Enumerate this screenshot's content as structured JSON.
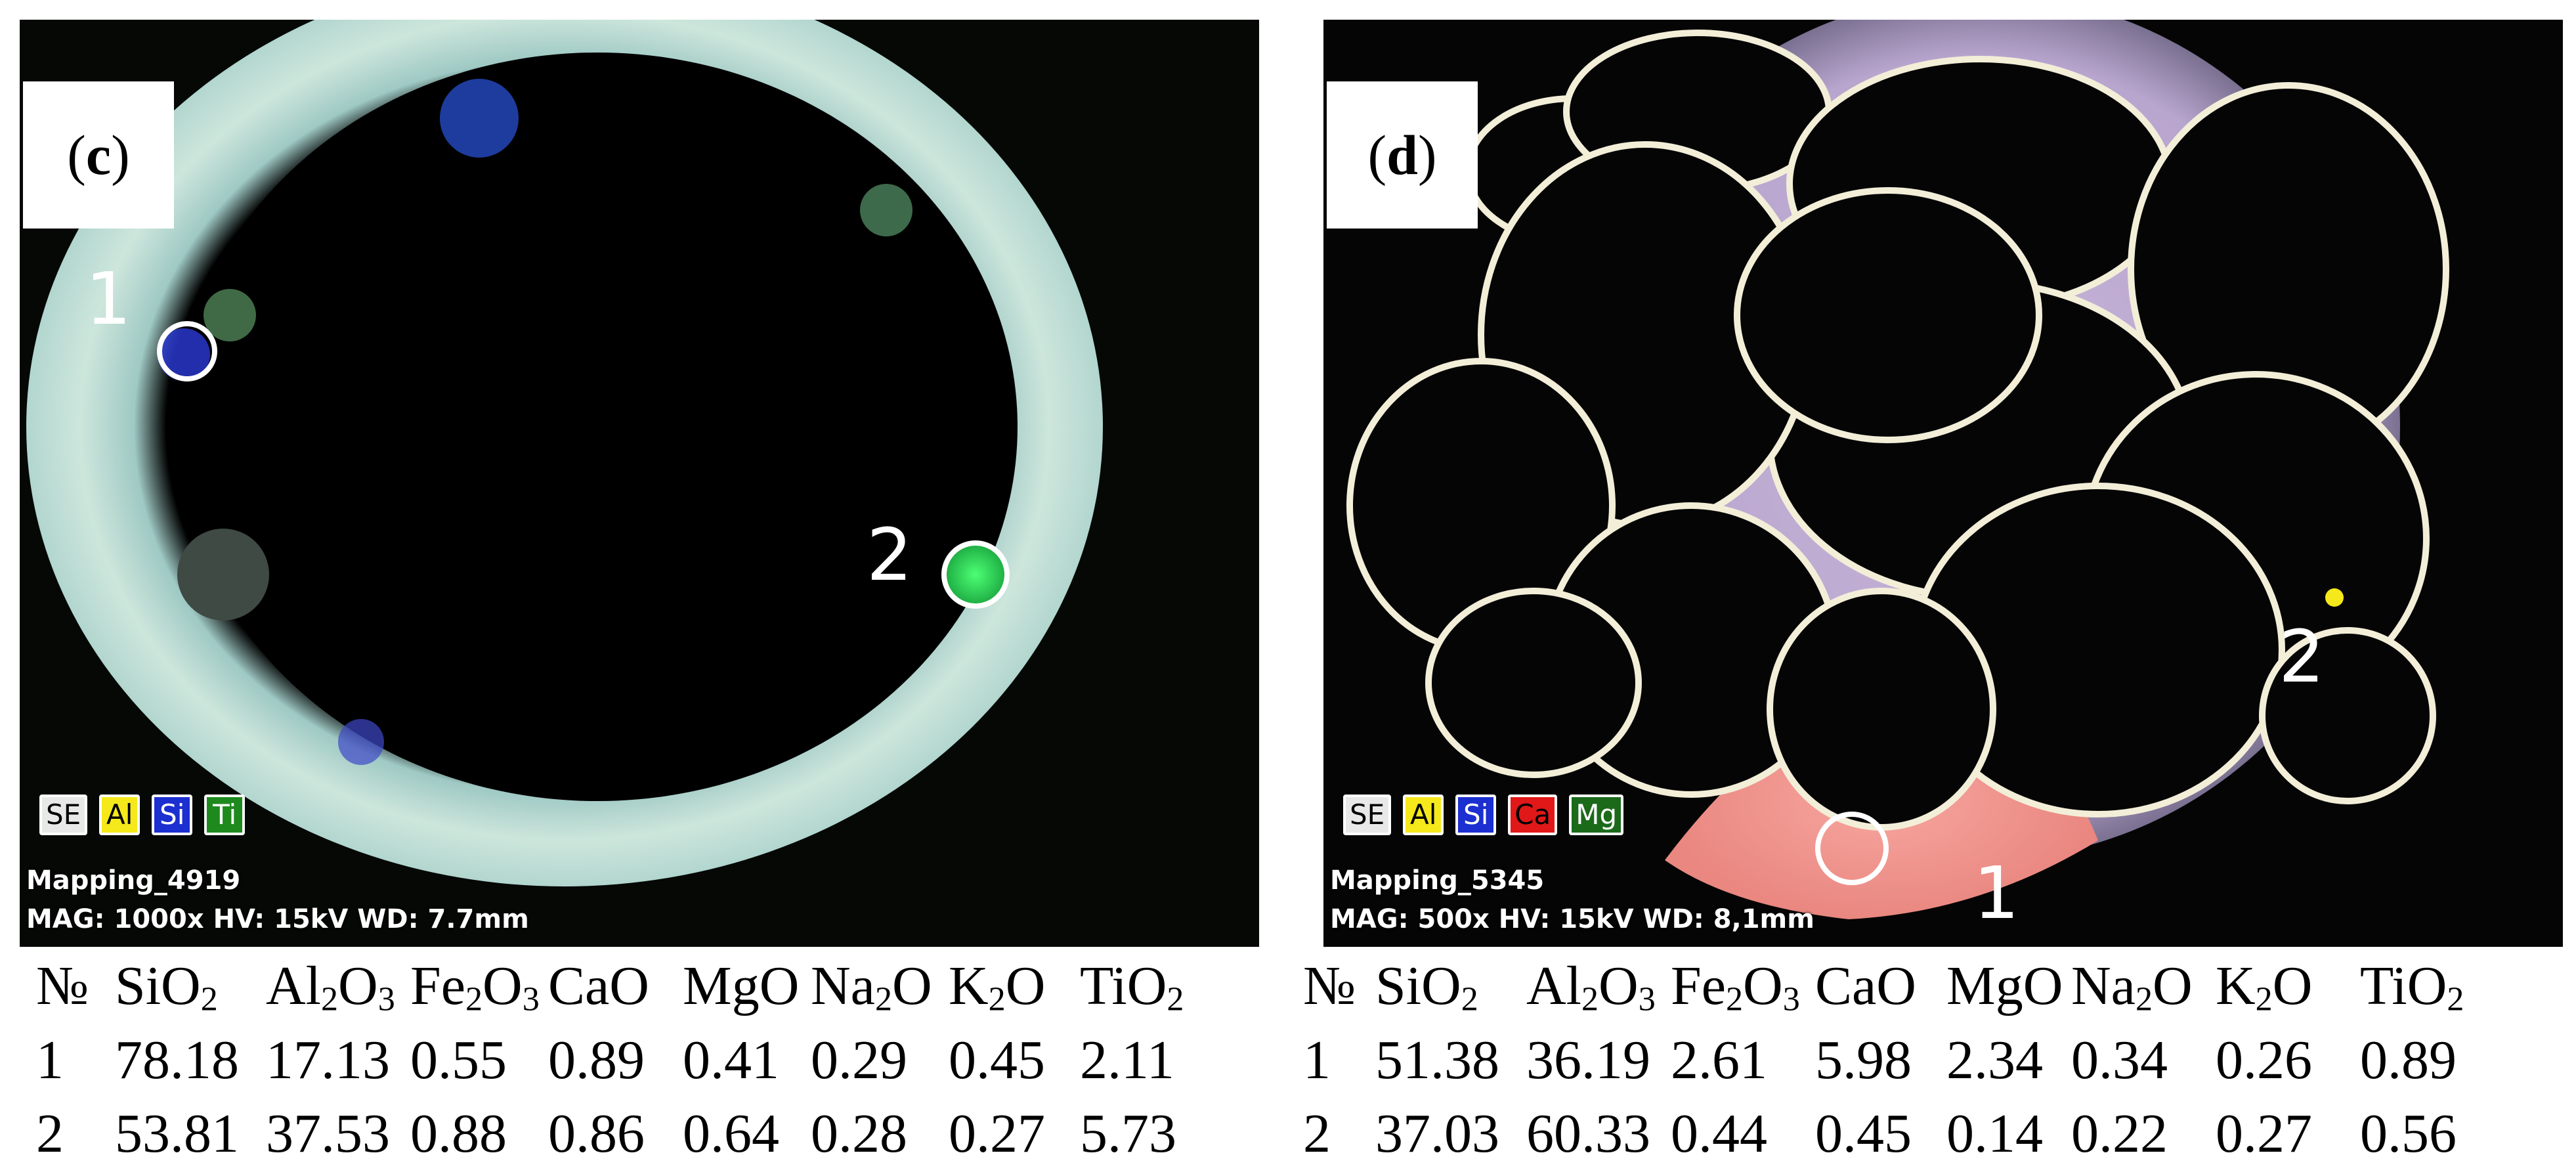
{
  "panels": [
    {
      "id": "c",
      "label_letter": "c",
      "points": [
        {
          "number": "1"
        },
        {
          "number": "2"
        }
      ],
      "legend": [
        {
          "text": "SE",
          "color": "#e8e8e8",
          "text_color": "#000000"
        },
        {
          "text": "Al",
          "color": "#f5e81b",
          "text_color": "#000000"
        },
        {
          "text": "Si",
          "color": "#1c2fd0",
          "text_color": "#ffffff"
        },
        {
          "text": "Ti",
          "color": "#1e8a1e",
          "text_color": "#ffffff"
        }
      ],
      "mapping_id": "Mapping_4919",
      "acquisition": "MAG: 1000x  HV: 15kV  WD: 7.7mm",
      "table": {
        "headers": [
          "№",
          "SiO2",
          "Al2O3",
          "Fe2O3",
          "CaO",
          "MgO",
          "Na2O",
          "K2O",
          "TiO2"
        ],
        "rows": [
          [
            "1",
            "78.18",
            "17.13",
            "0.55",
            "0.89",
            "0.41",
            "0.29",
            "0.45",
            "2.11"
          ],
          [
            "2",
            "53.81",
            "37.53",
            "0.88",
            "0.86",
            "0.64",
            "0.28",
            "0.27",
            "5.73"
          ]
        ]
      }
    },
    {
      "id": "d",
      "label_letter": "d",
      "points": [
        {
          "number": "1"
        },
        {
          "number": "2"
        }
      ],
      "legend": [
        {
          "text": "SE",
          "color": "#e8e8e8",
          "text_color": "#000000"
        },
        {
          "text": "Al",
          "color": "#f5e81b",
          "text_color": "#000000"
        },
        {
          "text": "Si",
          "color": "#1c2fd0",
          "text_color": "#ffffff"
        },
        {
          "text": "Ca",
          "color": "#e01818",
          "text_color": "#000000"
        },
        {
          "text": "Mg",
          "color": "#1a6a1a",
          "text_color": "#ffffff"
        }
      ],
      "mapping_id": "Mapping_5345",
      "acquisition": "MAG: 500x  HV: 15kV  WD: 8,1mm",
      "table": {
        "headers": [
          "№",
          "SiO2",
          "Al2O3",
          "Fe2O3",
          "CaO",
          "MgO",
          "Na2O",
          "K2O",
          "TiO2"
        ],
        "rows": [
          [
            "1",
            "51.38",
            "36.19",
            "2.61",
            "5.98",
            "2.34",
            "0.34",
            "0.26",
            "0.89"
          ],
          [
            "2",
            "37.03",
            "60.33",
            "0.44",
            "0.45",
            "0.14",
            "0.22",
            "0.27",
            "0.56"
          ]
        ]
      }
    }
  ]
}
